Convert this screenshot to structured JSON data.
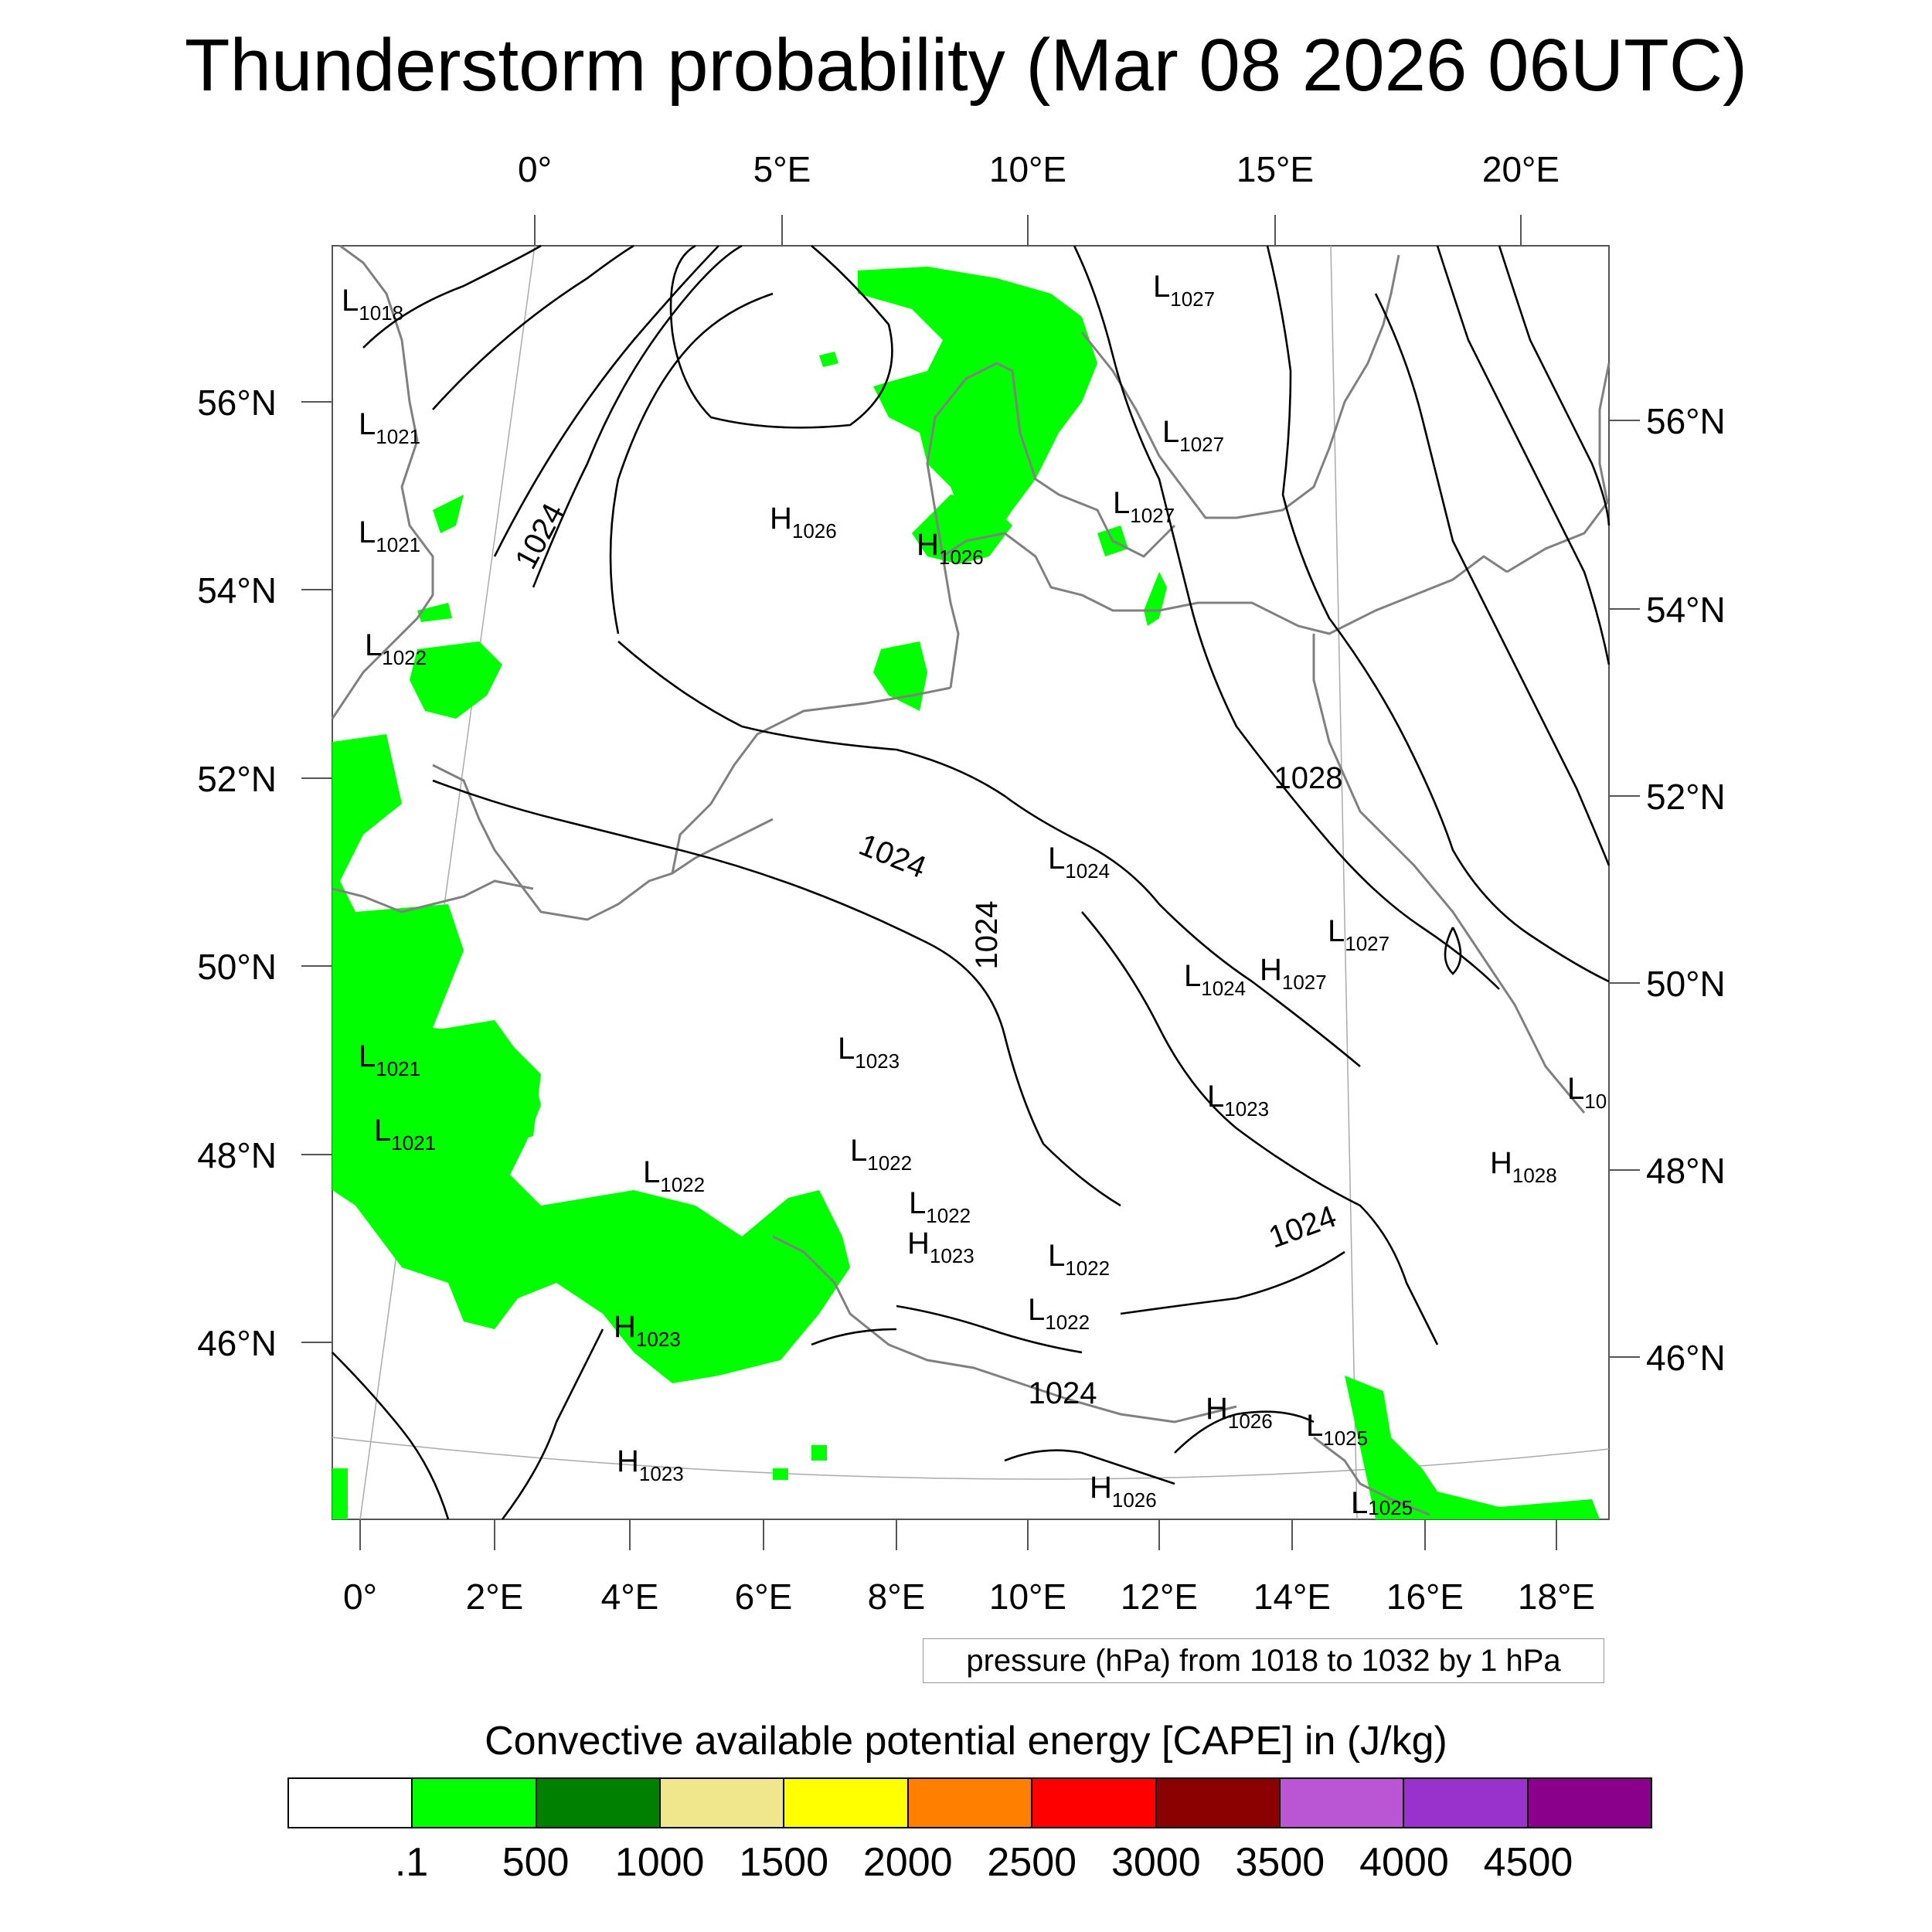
{
  "title": "Thunderstorm probability (Mar 08 2026 06UTC)",
  "top_lon_labels": [
    "0°",
    "5°E",
    "10°E",
    "15°E",
    "20°E"
  ],
  "bottom_lon_labels": [
    "0°",
    "2°E",
    "4°E",
    "6°E",
    "8°E",
    "10°E",
    "12°E",
    "14°E",
    "16°E",
    "18°E"
  ],
  "left_lat_labels": [
    "56°N",
    "54°N",
    "52°N",
    "50°N",
    "48°N",
    "46°N"
  ],
  "right_lat_labels": [
    "56°N",
    "54°N",
    "52°N",
    "50°N",
    "48°N",
    "46°N"
  ],
  "isobar_labels": [
    "1024",
    "1024",
    "1024",
    "1028",
    "1024",
    "1024"
  ],
  "pressure_centers": [
    {
      "type": "L",
      "value": "1018"
    },
    {
      "type": "L",
      "value": "1021"
    },
    {
      "type": "L",
      "value": "1021"
    },
    {
      "type": "L",
      "value": "1022"
    },
    {
      "type": "L",
      "value": "1021"
    },
    {
      "type": "L",
      "value": "1021"
    },
    {
      "type": "L",
      "value": "1022"
    },
    {
      "type": "H",
      "value": "1023"
    },
    {
      "type": "H",
      "value": "1023"
    },
    {
      "type": "H",
      "value": "1026"
    },
    {
      "type": "H",
      "value": "1026"
    },
    {
      "type": "L",
      "value": "1027"
    },
    {
      "type": "L",
      "value": "1027"
    },
    {
      "type": "L",
      "value": "1027"
    },
    {
      "type": "L",
      "value": "1024"
    },
    {
      "type": "L",
      "value": "1023"
    },
    {
      "type": "L",
      "value": "1022"
    },
    {
      "type": "L",
      "value": "1022"
    },
    {
      "type": "H",
      "value": "1023"
    },
    {
      "type": "L",
      "value": "1022"
    },
    {
      "type": "L",
      "value": "1022"
    },
    {
      "type": "L",
      "value": "1024"
    },
    {
      "type": "H",
      "value": "1027"
    },
    {
      "type": "L",
      "value": "1027"
    },
    {
      "type": "L",
      "value": "1023"
    },
    {
      "type": "H",
      "value": "1028"
    },
    {
      "type": "H",
      "value": "1026"
    },
    {
      "type": "L",
      "value": "1025"
    },
    {
      "type": "H",
      "value": "1026"
    },
    {
      "type": "L",
      "value": "1025"
    },
    {
      "type": "L",
      "value": "10"
    }
  ],
  "pressure_note": "pressure (hPa) from 1018 to 1032 by 1 hPa",
  "cape_title": "Convective available potential energy [CAPE] in (J/kg)",
  "colorbar": {
    "colors": [
      "#ffffff",
      "#00ff00",
      "#008000",
      "#f0e68c",
      "#ffff00",
      "#ff8000",
      "#ff0000",
      "#8b0000",
      "#ba55d3",
      "#9932cc",
      "#8b008b"
    ],
    "labels": [
      ".1",
      "500",
      "1000",
      "1500",
      "2000",
      "2500",
      "3000",
      "3500",
      "4000",
      "4500"
    ]
  }
}
